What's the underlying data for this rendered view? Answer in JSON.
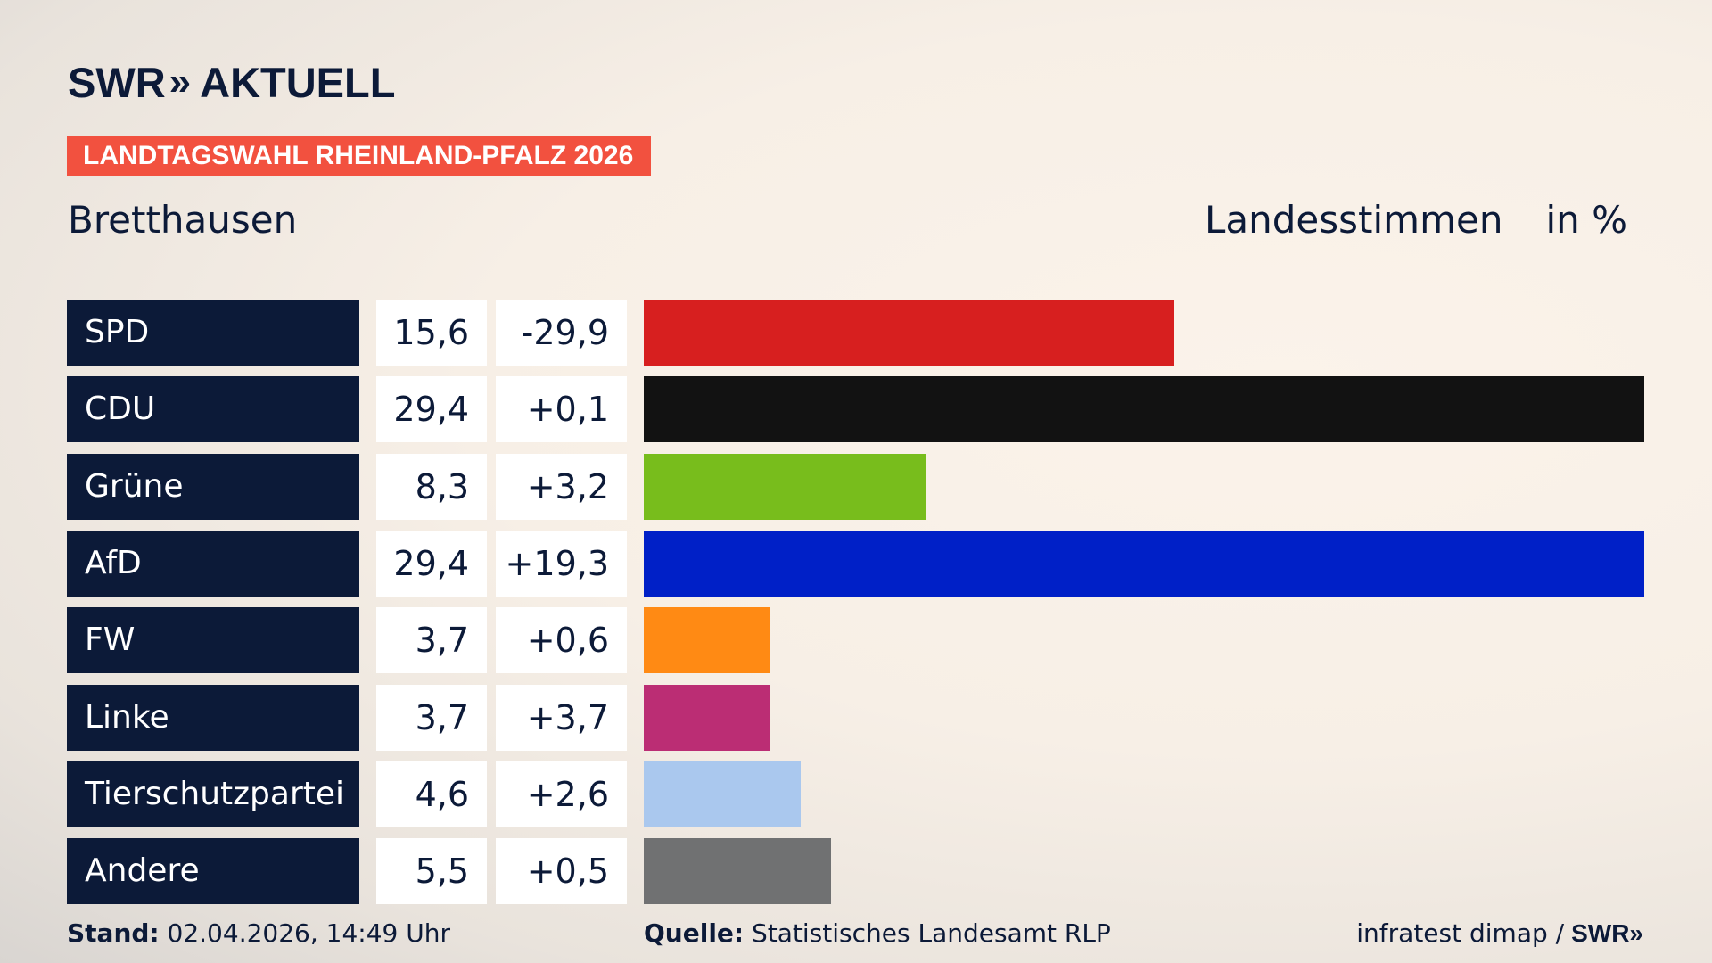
{
  "brand": {
    "logo_swr": "SWR",
    "logo_chevrons": "»",
    "logo_aktuell": "AKTUELL"
  },
  "badge": "LANDTAGSWAHL RHEINLAND-PFALZ 2026",
  "place": "Bretthausen",
  "header": {
    "metric": "Landesstimmen",
    "unit": "in %"
  },
  "footer": {
    "stand_label": "Stand:",
    "stand_value": "02.04.2026, 14:49 Uhr",
    "source_label": "Quelle:",
    "source_value": "Statistisches Landesamt RLP",
    "pollster": "infratest dimap /",
    "footer_logo": "SWR»"
  },
  "chart_data": {
    "type": "bar",
    "orientation": "horizontal",
    "title": "",
    "xlabel": "",
    "ylabel": "",
    "categories": [
      "SPD",
      "CDU",
      "Grüne",
      "AfD",
      "FW",
      "Linke",
      "Tierschutzpartei",
      "Andere"
    ],
    "values": [
      15.6,
      29.4,
      8.3,
      29.4,
      3.7,
      3.7,
      4.6,
      5.5
    ],
    "value_labels": [
      "15,6",
      "29,4",
      "8,3",
      "29,4",
      "3,7",
      "3,7",
      "4,6",
      "5,5"
    ],
    "diff_labels": [
      "-29,9",
      "+0,1",
      "+3,2",
      "+19,3",
      "+0,6",
      "+3,7",
      "+2,6",
      "+0,5"
    ],
    "colors": [
      "#d71f1f",
      "#121212",
      "#78bd1c",
      "#0020c7",
      "#ff8a14",
      "#bb2d74",
      "#aac8ee",
      "#707172"
    ],
    "xlim": [
      0,
      29.4
    ],
    "grid": false,
    "legend": "none"
  }
}
